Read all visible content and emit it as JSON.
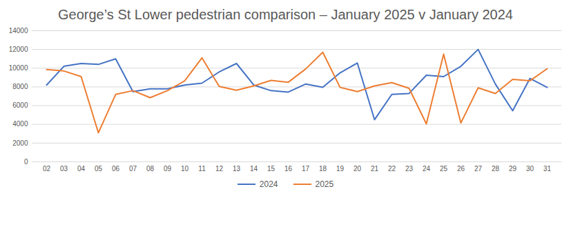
{
  "chart_data": {
    "type": "line",
    "title": "George’s St Lower pedestrian comparison – January 2025 v January 2024",
    "categories": [
      "02",
      "03",
      "04",
      "05",
      "06",
      "07",
      "08",
      "09",
      "10",
      "11",
      "12",
      "13",
      "14",
      "15",
      "16",
      "17",
      "18",
      "19",
      "20",
      "21",
      "22",
      "23",
      "24",
      "25",
      "26",
      "27",
      "28",
      "29",
      "30",
      "31"
    ],
    "series": [
      {
        "name": "2024",
        "color": "#4472c4",
        "values": [
          8200,
          10200,
          10500,
          10400,
          11000,
          7500,
          7800,
          7800,
          8200,
          8400,
          9600,
          10500,
          8200,
          7600,
          7450,
          8300,
          7950,
          9500,
          10550,
          4500,
          7200,
          7300,
          9250,
          9100,
          10200,
          12000,
          8300,
          5450,
          8900,
          7950
        ]
      },
      {
        "name": "2025",
        "color": "#ed7d31",
        "values": [
          9850,
          9700,
          9100,
          3100,
          7200,
          7600,
          6850,
          7600,
          8650,
          11100,
          8050,
          7650,
          8100,
          8700,
          8500,
          9900,
          11700,
          7950,
          7500,
          8100,
          8450,
          7850,
          4050,
          11500,
          4150,
          7900,
          7300,
          8800,
          8650,
          9950
        ]
      }
    ],
    "ylim": [
      0,
      14000
    ],
    "yticks": [
      0,
      2000,
      4000,
      6000,
      8000,
      10000,
      12000,
      14000
    ],
    "grid": true,
    "legend": "bottom"
  }
}
